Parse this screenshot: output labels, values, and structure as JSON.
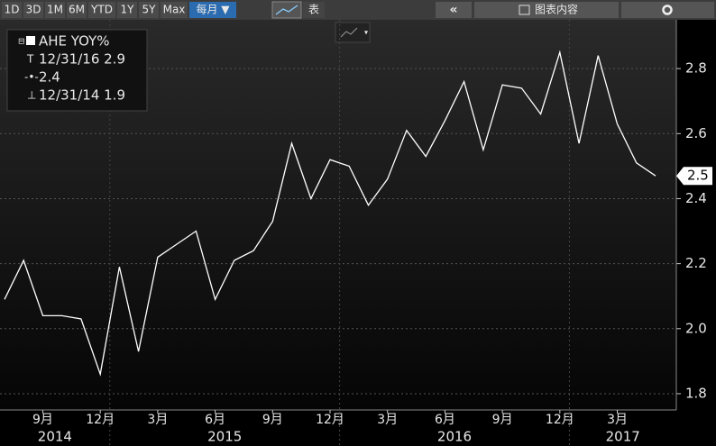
{
  "toolbar": {
    "ranges": [
      "1D",
      "3D",
      "1M",
      "6M",
      "YTD",
      "1Y",
      "5Y",
      "Max"
    ],
    "period": "每月 ▼",
    "table": "表",
    "content": "图表内容"
  },
  "legend": {
    "series": "AHE YOY%",
    "high": "12/31/16 2.9",
    "average": "2.4",
    "low": "12/31/14 1.9"
  },
  "chart_data": {
    "type": "line",
    "x": [
      "2014-07",
      "2014-08",
      "2014-09",
      "2014-10",
      "2014-11",
      "2014-12",
      "2015-01",
      "2015-02",
      "2015-03",
      "2015-04",
      "2015-05",
      "2015-06",
      "2015-07",
      "2015-08",
      "2015-09",
      "2015-10",
      "2015-11",
      "2015-12",
      "2016-01",
      "2016-02",
      "2016-03",
      "2016-04",
      "2016-05",
      "2016-06",
      "2016-07",
      "2016-08",
      "2016-09",
      "2016-10",
      "2016-11",
      "2016-12",
      "2017-01",
      "2017-02",
      "2017-03",
      "2017-04",
      "2017-05"
    ],
    "series": [
      {
        "name": "AHE YOY%",
        "color": "#ffffff",
        "values": [
          2.09,
          2.21,
          2.04,
          2.04,
          2.03,
          1.86,
          2.19,
          1.93,
          2.22,
          2.26,
          2.3,
          2.09,
          2.21,
          2.24,
          2.33,
          2.57,
          2.4,
          2.52,
          2.5,
          2.38,
          2.46,
          2.61,
          2.53,
          2.64,
          2.76,
          2.55,
          2.75,
          2.74,
          2.66,
          2.85,
          2.57,
          2.84,
          2.63,
          2.51,
          2.47
        ]
      }
    ],
    "last_tag": "2.5",
    "xticks": [
      {
        "value": "2014-09",
        "label": "9月"
      },
      {
        "value": "2014-12",
        "label": "12月"
      },
      {
        "value": "2015-03",
        "label": "3月"
      },
      {
        "value": "2015-06",
        "label": "6月"
      },
      {
        "value": "2015-09",
        "label": "9月"
      },
      {
        "value": "2015-12",
        "label": "12月"
      },
      {
        "value": "2016-03",
        "label": "3月"
      },
      {
        "value": "2016-06",
        "label": "6月"
      },
      {
        "value": "2016-09",
        "label": "9月"
      },
      {
        "value": "2016-12",
        "label": "12月"
      },
      {
        "value": "2017-03",
        "label": "3月"
      }
    ],
    "x_groups": [
      "2014",
      "2015",
      "2016",
      "2017"
    ],
    "ylim": [
      1.75,
      2.95
    ],
    "yticks": [
      1.8,
      {
        "value": 2,
        "label": "2.0"
      },
      2.2,
      2.4,
      2.6,
      2.8
    ],
    "grid": true
  }
}
